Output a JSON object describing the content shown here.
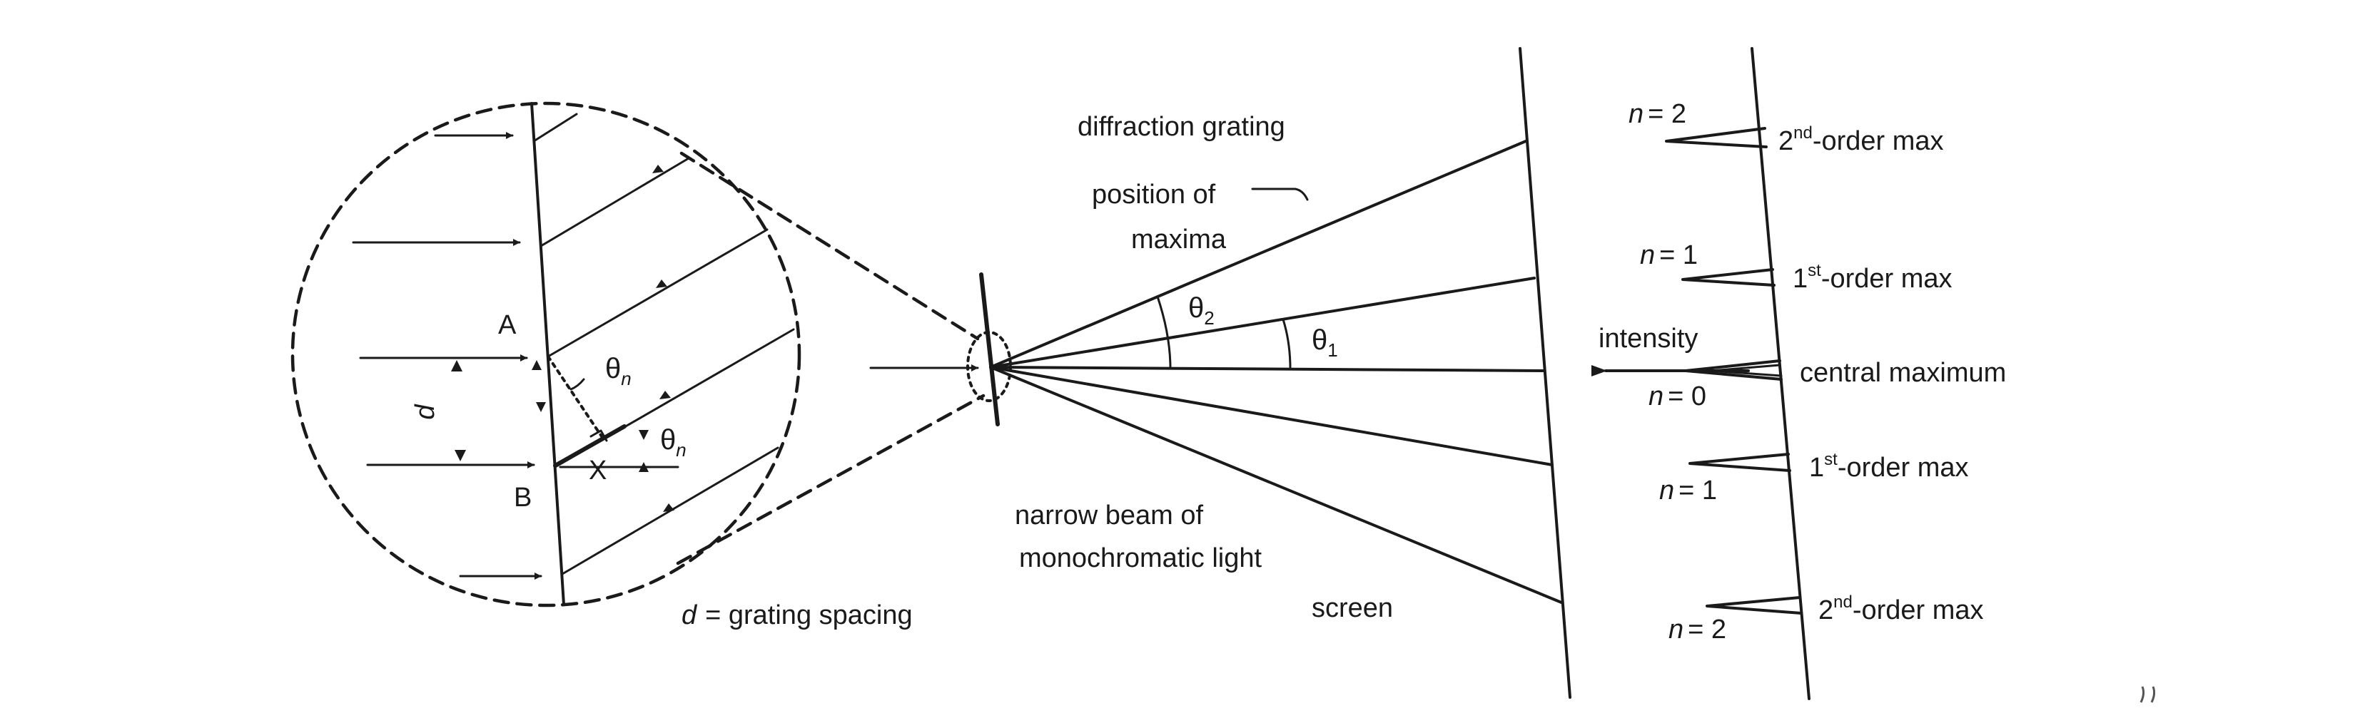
{
  "labels": {
    "diffraction_grating": "diffraction grating",
    "position_of": "position of",
    "maxima": "maxima",
    "narrow_beam_line1": "narrow beam of",
    "narrow_beam_line2": "monochromatic light",
    "screen": "screen",
    "grating_spacing": "= grating spacing",
    "intensity": "intensity",
    "central_maximum": "central maximum",
    "point_a": "A",
    "point_b": "B",
    "point_x": "X",
    "d": "d",
    "theta": "θ",
    "theta_sub_1": "1",
    "theta_sub_2": "2",
    "theta_sub_n": "n"
  },
  "intensity_peaks": [
    {
      "n_var": "n",
      "n_value": "= 2",
      "order_num": "2",
      "order_sup": "nd",
      "order_rest": "-order max"
    },
    {
      "n_var": "n",
      "n_value": "= 1",
      "order_num": "1",
      "order_sup": "st",
      "order_rest": "-order max"
    },
    {
      "n_var": "n",
      "n_value": "= 0",
      "order_num": "",
      "order_sup": "",
      "order_rest": ""
    },
    {
      "n_var": "n",
      "n_value": "= 1",
      "order_num": "1",
      "order_sup": "st",
      "order_rest": "-order max"
    },
    {
      "n_var": "n",
      "n_value": "= 2",
      "order_num": "2",
      "order_sup": "nd",
      "order_rest": "-order max"
    }
  ]
}
